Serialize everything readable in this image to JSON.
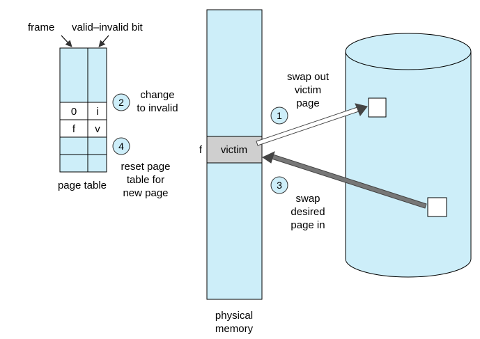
{
  "labels": {
    "frame": "frame",
    "valid_invalid_bit": "valid–invalid bit",
    "page_table": "page table",
    "physical_memory_1": "physical",
    "physical_memory_2": "memory",
    "victim": "victim",
    "frame_f": "f"
  },
  "page_table": {
    "rows": [
      {
        "frame": "0",
        "bit": "i"
      },
      {
        "frame": "f",
        "bit": "v"
      }
    ]
  },
  "steps": [
    {
      "number": "1",
      "lines": [
        "swap out",
        "victim",
        "page"
      ]
    },
    {
      "number": "2",
      "lines": [
        "change",
        "to invalid"
      ]
    },
    {
      "number": "3",
      "lines": [
        "swap",
        "desired",
        "page in"
      ]
    },
    {
      "number": "4",
      "lines": [
        "reset page",
        "table for",
        "new page"
      ]
    }
  ],
  "colors": {
    "memory_fill": "#cdeef9",
    "victim_fill": "#cfcfcf",
    "disk_fill": "#cdeef9",
    "circle_fill": "#cdeef9",
    "arrow_light": "#ffffff",
    "arrow_dark": "#666666"
  }
}
